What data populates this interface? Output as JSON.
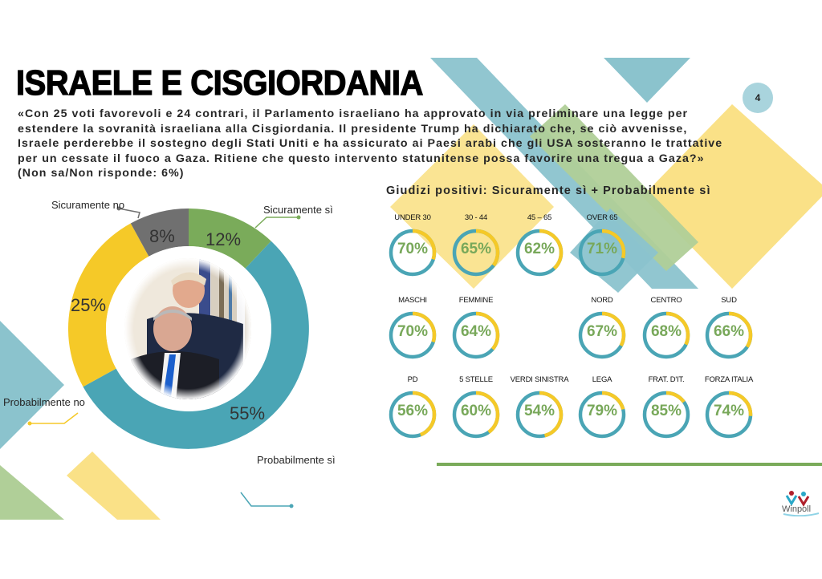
{
  "slide": {
    "title": "ISRAELE E CISGIORDANIA",
    "page_number": "4",
    "question": "«Con 25 voti favorevoli e 24 contrari, il Parlamento israeliano ha approvato in via preliminare una legge per\nestendere la sovranità israeliana alla Cisgiordania. Il presidente Trump ha dichiarato che, se ciò avvenisse,\nIsraele perderebbe il sostegno degli Stati Uniti e ha assicurato ai Paesi arabi che gli USA sosteranno le trattative\nper un cessate il fuoco a Gaza. Ritiene che questo intervento statunitense possa favorire una tregua a Gaza?»\n(Non sa/Non risponde: 6%)",
    "subtitle": "Giudizi positivi: Sicuramente sì + Probabilmente sì",
    "logo_text": "Winpoll"
  },
  "colors": {
    "teal": "#4aa5b5",
    "yellow": "#f5c928",
    "green": "#7aab5a",
    "grey": "#707070",
    "pct_green": "#78a85a",
    "deco_teal": "#8bc3cd",
    "deco_yellow": "#fae187",
    "deco_green": "#b0cf98"
  },
  "donut": {
    "segments": [
      {
        "label": "Sicuramente sì",
        "value": 12,
        "display": "12%"
      },
      {
        "label": "Probabilmente sì",
        "value": 55,
        "display": "55%"
      },
      {
        "label": "Probabilmente no",
        "value": 25,
        "display": "25%"
      },
      {
        "label": "Sicuramente no",
        "value": 8,
        "display": "8%"
      }
    ]
  },
  "groups": [
    {
      "label": "UNDER 30",
      "value": 70,
      "display": "70%"
    },
    {
      "label": "30 - 44",
      "value": 65,
      "display": "65%"
    },
    {
      "label": "45 – 65",
      "value": 62,
      "display": "62%"
    },
    {
      "label": "OVER 65",
      "value": 71,
      "display": "71%"
    },
    {
      "label": "MASCHI",
      "value": 70,
      "display": "70%"
    },
    {
      "label": "FEMMINE",
      "value": 64,
      "display": "64%"
    },
    {
      "label": "NORD",
      "value": 67,
      "display": "67%"
    },
    {
      "label": "CENTRO",
      "value": 68,
      "display": "68%"
    },
    {
      "label": "SUD",
      "value": 66,
      "display": "66%"
    },
    {
      "label": "PD",
      "value": 56,
      "display": "56%"
    },
    {
      "label": "5 STELLE",
      "value": 60,
      "display": "60%"
    },
    {
      "label": "VERDI SINISTRA",
      "value": 54,
      "display": "54%"
    },
    {
      "label": "LEGA",
      "value": 79,
      "display": "79%"
    },
    {
      "label": "FRAT. D'IT.",
      "value": 85,
      "display": "85%"
    },
    {
      "label": "FORZA ITALIA",
      "value": 74,
      "display": "74%"
    }
  ],
  "chart_data": [
    {
      "type": "pie",
      "title": "Ritiene che questo intervento statunitense possa favorire una tregua a Gaza?",
      "categories": [
        "Sicuramente sì",
        "Probabilmente sì",
        "Probabilmente no",
        "Sicuramente no"
      ],
      "values": [
        12,
        55,
        25,
        8
      ],
      "unit": "%",
      "note": "Non sa/Non risponde: 6%",
      "donut": true
    },
    {
      "type": "pie",
      "title": "Giudizi positivi: Sicuramente sì + Probabilmente sì",
      "categories": [
        "UNDER 30",
        "30 - 44",
        "45 – 65",
        "OVER 65",
        "MASCHI",
        "FEMMINE",
        "NORD",
        "CENTRO",
        "SUD",
        "PD",
        "5 STELLE",
        "VERDI SINISTRA",
        "LEGA",
        "FRAT. D'IT.",
        "FORZA ITALIA"
      ],
      "values": [
        70,
        65,
        62,
        71,
        70,
        64,
        67,
        68,
        66,
        56,
        60,
        54,
        79,
        85,
        74
      ],
      "unit": "%"
    }
  ]
}
